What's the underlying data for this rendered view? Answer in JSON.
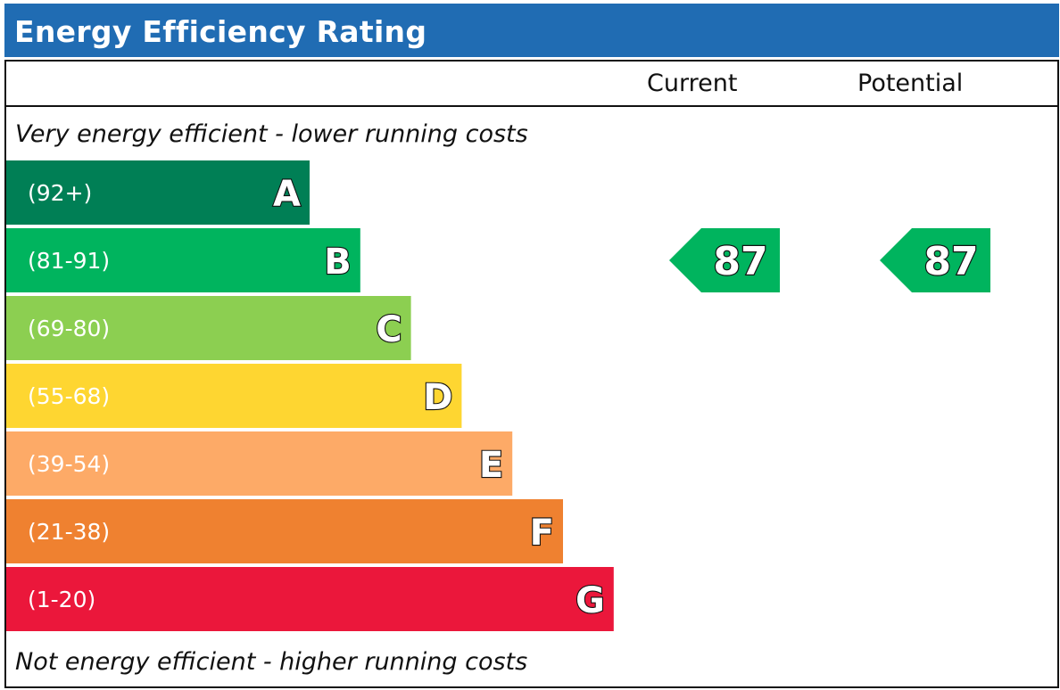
{
  "chart_data": {
    "type": "bar",
    "title": "Energy Efficiency Rating",
    "column_headers": {
      "current": "Current",
      "potential": "Potential"
    },
    "top_caption": "Very energy efficient - lower running costs",
    "bottom_caption": "Not energy efficient - higher running costs",
    "bands": [
      {
        "letter": "A",
        "range": "(92+)",
        "color": "#007f55",
        "level": 1
      },
      {
        "letter": "B",
        "range": "(81-91)",
        "color": "#00b45e",
        "level": 2
      },
      {
        "letter": "C",
        "range": "(69-80)",
        "color": "#8ccf51",
        "level": 3
      },
      {
        "letter": "D",
        "range": "(55-68)",
        "color": "#fed631",
        "level": 4
      },
      {
        "letter": "E",
        "range": "(39-54)",
        "color": "#fdaa67",
        "level": 5
      },
      {
        "letter": "F",
        "range": "(21-38)",
        "color": "#ef8130",
        "level": 6
      },
      {
        "letter": "G",
        "range": "(1-20)",
        "color": "#eb173b",
        "level": 7
      }
    ],
    "current": {
      "value": 87,
      "band": "B",
      "color": "#00b45e"
    },
    "potential": {
      "value": 87,
      "band": "B",
      "color": "#00b45e"
    }
  }
}
